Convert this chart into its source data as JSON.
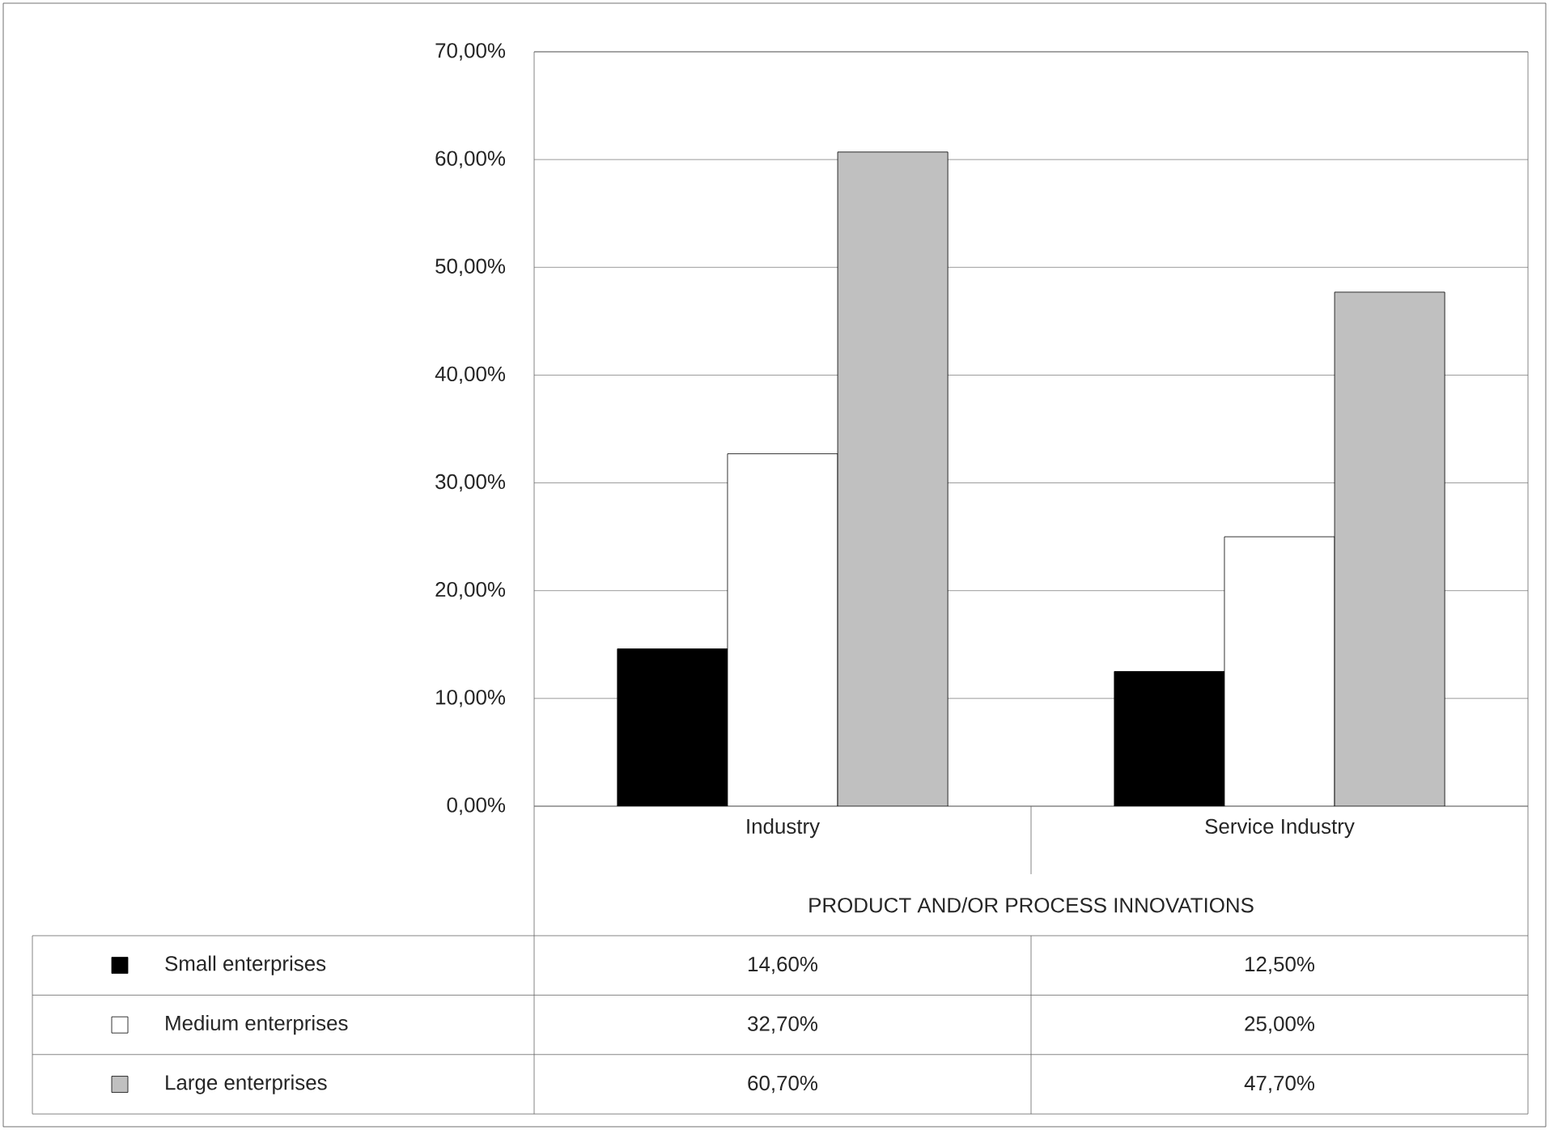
{
  "chart_data": {
    "type": "bar",
    "xlabel": "PRODUCT AND/OR PROCESS INNOVATIONS",
    "categories": [
      "Industry",
      "Service Industry"
    ],
    "series": [
      {
        "name": "Small enterprises",
        "color": "#000000",
        "values": [
          14.6,
          12.5
        ],
        "value_labels": [
          "14,60%",
          "12,50%"
        ]
      },
      {
        "name": "Medium enterprises",
        "color": "#ffffff",
        "values": [
          32.7,
          25.0
        ],
        "value_labels": [
          "32,70%",
          "25,00%"
        ]
      },
      {
        "name": "Large enterprises",
        "color": "#c0c0c0",
        "values": [
          60.7,
          47.7
        ],
        "value_labels": [
          "60,70%",
          "47,70%"
        ]
      }
    ],
    "ylim": [
      0,
      70
    ],
    "yticks": [
      {
        "value": 0,
        "label": "0,00%"
      },
      {
        "value": 10,
        "label": "10,00%"
      },
      {
        "value": 20,
        "label": "20,00%"
      },
      {
        "value": 30,
        "label": "30,00%"
      },
      {
        "value": 40,
        "label": "40,00%"
      },
      {
        "value": 50,
        "label": "50,00%"
      },
      {
        "value": 60,
        "label": "60,00%"
      },
      {
        "value": 70,
        "label": "70,00%"
      }
    ],
    "grid": "y",
    "legend": "bottom"
  }
}
